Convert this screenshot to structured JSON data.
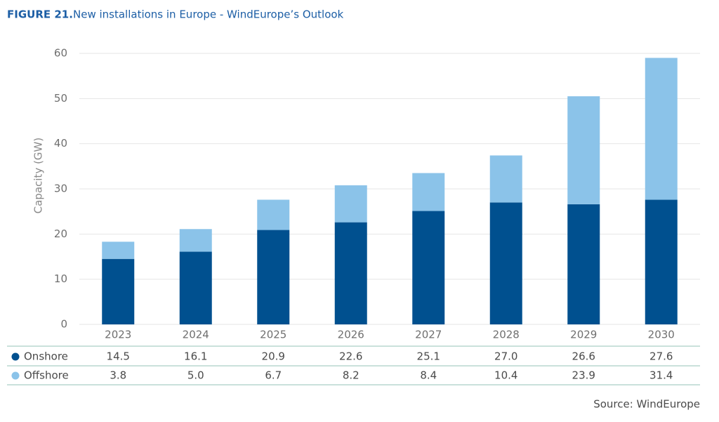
{
  "chart_data": {
    "type": "stacked-bar",
    "figure_label": "FIGURE 21.",
    "title": "New installations in Europe - WindEurope’s Outlook",
    "y_label": "Capacity (GW)",
    "source": "Source: WindEurope",
    "categories": [
      "2023",
      "2024",
      "2025",
      "2026",
      "2027",
      "2028",
      "2029",
      "2030"
    ],
    "series": [
      {
        "name": "Onshore",
        "color": "#00508f",
        "values": [
          14.5,
          16.1,
          20.9,
          22.6,
          25.1,
          27.0,
          26.6,
          27.6
        ],
        "value_labels": [
          "14.5",
          "16.1",
          "20.9",
          "22.6",
          "25.1",
          "27.0",
          "26.6",
          "27.6"
        ]
      },
      {
        "name": "Offshore",
        "color": "#8bc3e9",
        "values": [
          3.8,
          5.0,
          6.7,
          8.2,
          8.4,
          10.4,
          23.9,
          31.4
        ],
        "value_labels": [
          "3.8",
          "5.0",
          "6.7",
          "8.2",
          "8.4",
          "10.4",
          "23.9",
          "31.4"
        ]
      }
    ],
    "ylim": [
      0,
      60
    ],
    "yticks": [
      0,
      10,
      20,
      30,
      40,
      50,
      60
    ],
    "grid": true
  }
}
